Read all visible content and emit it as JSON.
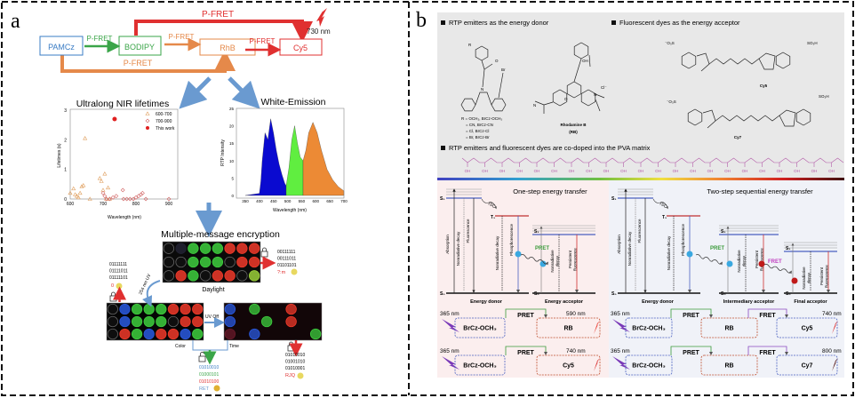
{
  "panel_a": {
    "label": "a",
    "nodes": {
      "pamcz": "PAMCz",
      "bodipy": "BODIPY",
      "rhb": "RhB",
      "cy5": "Cy5"
    },
    "arrows": {
      "top": "P-FRET",
      "green": "P-FRET",
      "orange": "P-FRET",
      "red": "P-FRET",
      "bottom": "P-FRET"
    },
    "emission": "730 nm",
    "lifetime_title": "Ultralong NIR lifetimes",
    "white_title": "White-Emission",
    "encryption_title": "Multiple-message encryption",
    "daylight_label": "Daylight",
    "uv_label": "254 nm UV",
    "uv_off_label": "UV Off",
    "color_label": "Color",
    "time_label": "Time",
    "code_daylight": [
      "00111111",
      "00111011",
      "01101101",
      "?:m"
    ],
    "code_left": [
      "01111111",
      "01111011",
      "01111101",
      "0"
    ],
    "code_color": [
      "01010010",
      "01000101",
      "01010100",
      "RET"
    ],
    "code_time": [
      "01010010",
      "01001010",
      "01010001",
      "RJQ"
    ],
    "colors": {
      "blue": "#3a7cc4",
      "green": "#3aa548",
      "orange": "#e5894a",
      "red": "#e03030",
      "arrow": "#6a9ad0"
    },
    "plates": {
      "daylight": [
        "kwgggrrr",
        "kkgggkrr",
        "krgkrrky"
      ],
      "uv": [
        "kbgggrrr",
        "kbgggkrr",
        "krgbrrbg"
      ],
      "uv_off": [
        "bngnnrnn",
        "bnngnrnn",
        "dnbnnnng"
      ]
    }
  },
  "chart_data": [
    {
      "type": "scatter",
      "title": "Ultralong NIR lifetimes",
      "xlabel": "Wavelength (nm)",
      "ylabel": "Lifetimes (s)",
      "xlim": [
        600,
        900
      ],
      "ylim": [
        0,
        3
      ],
      "xticks": [
        "600",
        "700",
        "800",
        "900"
      ],
      "yticks": [
        "0",
        "1",
        "2",
        "3"
      ],
      "legend_position": "top-right",
      "series": [
        {
          "name": "600-700",
          "marker": "triangle",
          "color": "#e0a060",
          "points": [
            [
              600,
              0.2
            ],
            [
              610,
              0.35
            ],
            [
              615,
              0.15
            ],
            [
              620,
              0.1
            ],
            [
              625,
              0.05
            ],
            [
              630,
              0.2
            ],
            [
              635,
              0.42
            ],
            [
              640,
              0.46
            ],
            [
              645,
              2.05
            ],
            [
              660,
              0.0
            ],
            [
              690,
              0.7
            ],
            [
              695,
              0.6
            ],
            [
              700,
              0.3
            ],
            [
              705,
              0.85
            ],
            [
              710,
              0.0
            ],
            [
              715,
              0.38
            ],
            [
              720,
              0.0
            ]
          ]
        },
        {
          "name": "700-900",
          "marker": "diamond",
          "color": "#d06060",
          "points": [
            [
              700,
              0.2
            ],
            [
              705,
              0.1
            ],
            [
              710,
              0.0
            ],
            [
              720,
              0.0
            ],
            [
              730,
              0.05
            ],
            [
              740,
              0.1
            ],
            [
              760,
              0.3
            ],
            [
              762,
              0.0
            ],
            [
              772,
              0.0
            ],
            [
              782,
              0.0
            ],
            [
              792,
              0.0
            ],
            [
              800,
              0.05
            ],
            [
              808,
              0.1
            ],
            [
              815,
              0.15
            ],
            [
              820,
              0.2
            ],
            [
              830,
              0.0
            ],
            [
              900,
              0.0
            ]
          ]
        },
        {
          "name": "This work",
          "marker": "circle",
          "color": "#e02020",
          "points": [
            [
              735,
              2.7
            ]
          ]
        }
      ]
    },
    {
      "type": "area",
      "title": "White-Emission",
      "xlabel": "Wavelength (nm)",
      "ylabel": "RTP Intensity",
      "xlim": [
        330,
        700
      ],
      "ylim": [
        0,
        25
      ],
      "xticks": [
        "350",
        "400",
        "450",
        "500",
        "550",
        "600",
        "650",
        "700"
      ],
      "yticks": [
        "0",
        "5",
        "10",
        "15",
        "20",
        "25"
      ],
      "x": [
        350,
        375,
        400,
        405,
        410,
        420,
        430,
        440,
        450,
        460,
        470,
        480,
        490,
        495,
        505,
        515,
        525,
        535,
        545,
        555,
        565,
        575,
        590,
        605,
        620,
        640,
        660,
        680,
        700
      ],
      "y": [
        0,
        0.3,
        0.6,
        4,
        10,
        18,
        16,
        22,
        18,
        13,
        9,
        6,
        3.5,
        2.8,
        8,
        16,
        20,
        15,
        11,
        10,
        13,
        18,
        21,
        18,
        13,
        7.5,
        4.5,
        2.5,
        1.3
      ],
      "regions": [
        {
          "range": [
            350,
            495
          ],
          "color": "#0a0ad0"
        },
        {
          "range": [
            495,
            555
          ],
          "color": "#60ee40"
        },
        {
          "range": [
            555,
            700
          ],
          "color": "#ec8a35"
        }
      ]
    }
  ],
  "panel_b": {
    "label": "b",
    "header_donor": "RTP emitters as the energy donor",
    "header_acceptor": "Fluorescent dyes as the energy acceptor",
    "header_matrix": "RTP emitters and fluorescent dyes are co-doped into the PVA matrix",
    "r_groups": [
      "R = OCH₃, BrCz-OCH₃",
      "= CN, BrCz-CN",
      "= Cl, BrCz-Cl",
      "= Br, BrCz-Br"
    ],
    "rb_name": "Rhodamine B",
    "rb_abbr": "(RB)",
    "cy5_name": "Cy5",
    "cy7_name": "Cy7",
    "chem_atoms": {
      "r": "R",
      "o": "O",
      "n": "N",
      "br": "Br",
      "oh": "OH",
      "cl": "Cl⁻",
      "so3": "⁻O₃S",
      "so3h": "SO₃H"
    },
    "pva_oh": "OH",
    "one_step_title": "One-step energy transfer",
    "two_step_title": "Two-step sequential energy transfer",
    "states": {
      "s1": "S₁",
      "s0": "S₀",
      "t1": "T₁",
      "isc": "ISC"
    },
    "processes": {
      "absorption": "Absorption",
      "nonrad": "Nonradiative decay",
      "fluor": "Fluorescence",
      "phos": "Phosphorescence",
      "nonrad2": [
        "Nonradiative",
        "decay"
      ],
      "persist": [
        "Persistent",
        "fluorescence"
      ]
    },
    "transfer": {
      "pret": "PRET",
      "fret": "FRET"
    },
    "roles": {
      "donor": "Energy donor",
      "acceptor": "Energy acceptor",
      "intermediary": "Intermediary acceptor",
      "final": "Final acceptor"
    },
    "schemes": [
      {
        "excite": "365 nm",
        "donor": "BrCz-OCH₃",
        "acceptor": "RB",
        "emit": "590 nm",
        "emit_color": "#e8342a"
      },
      {
        "excite": "365 nm",
        "donor": "BrCz-OCH₃",
        "acceptor": "Cy5",
        "emit": "740 nm",
        "emit_color": "#d82a2a"
      },
      {
        "excite": "365 nm",
        "donor": "BrCz-OCH₃",
        "middle": "RB",
        "acceptor": "Cy5",
        "emit": "740 nm",
        "emit_color": "#d82a2a"
      },
      {
        "excite": "365 nm",
        "donor": "BrCz-OCH₃",
        "middle": "RB",
        "acceptor": "Cy7",
        "emit": "800 nm",
        "emit_color": "#4a0a0a"
      }
    ]
  }
}
